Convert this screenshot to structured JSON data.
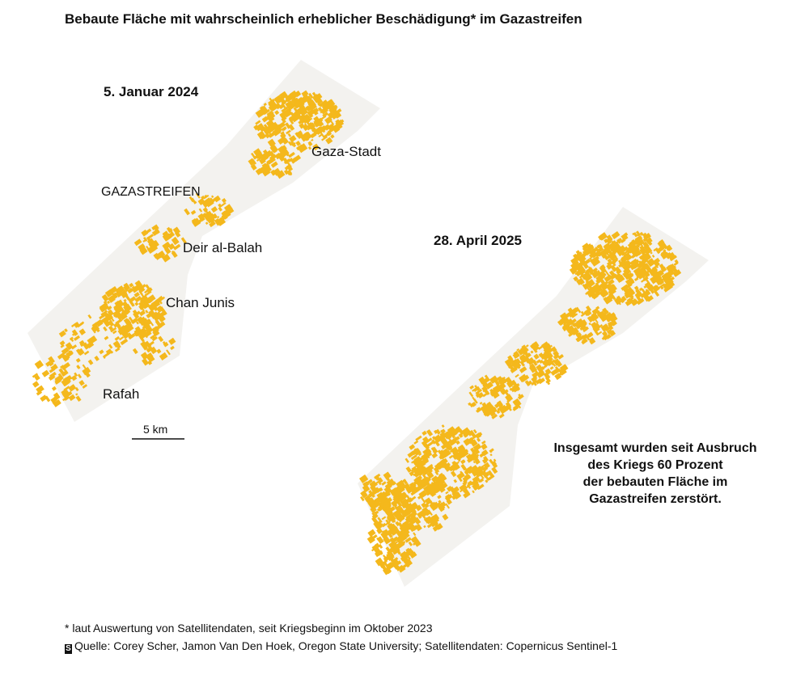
{
  "title": "Bebaute Fläche mit wahrscheinlich erheblicher Beschädigung* im Gazastreifen",
  "maps": [
    {
      "date": "5. Januar 2024",
      "labels": [
        "Gaza-Stadt",
        "GAZASTREIFEN",
        "Deir al-Balah",
        "Chan Junis",
        "Rafah"
      ],
      "scale_label": "5 km"
    },
    {
      "date": "28. April 2025"
    }
  ],
  "annotation": [
    "Insgesamt wurden seit Ausbruch",
    "des Kriegs 60 Prozent",
    "der bebauten Fläche im",
    "Gazastreifen zerstört."
  ],
  "footnote": "* laut Auswertung von Satellitendaten, seit Kriegsbeginn im Oktober 2023",
  "source": "Quelle: Corey Scher, Jamon Van Den Hoek, Oregon State University; Satellitendaten: Copernicus Sentinel-1"
}
